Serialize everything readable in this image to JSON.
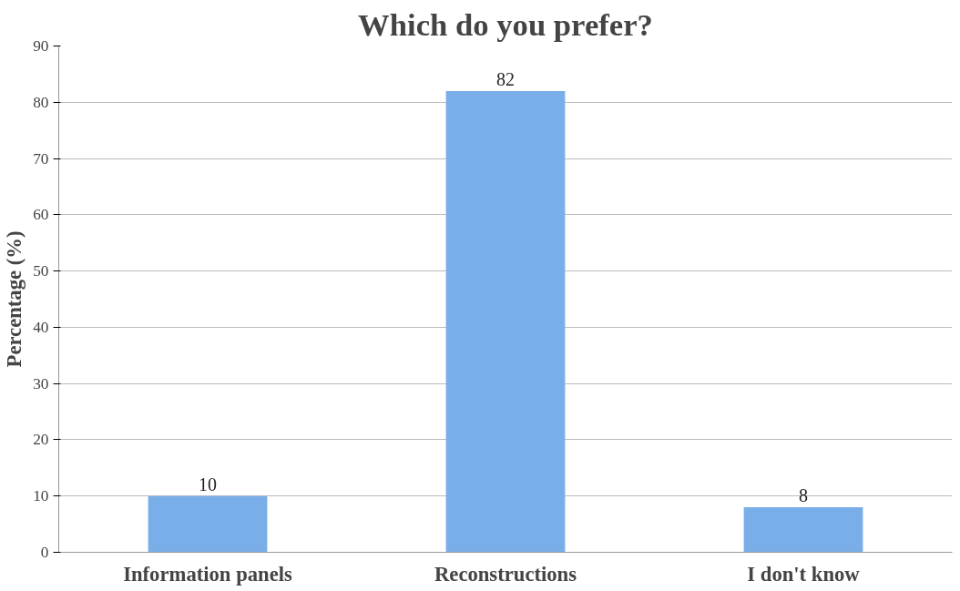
{
  "chart_data": {
    "type": "bar",
    "title": "Which do you prefer?",
    "ylabel": "Percentage (%)",
    "categories": [
      "Information panels",
      "Reconstructions",
      "I don't know"
    ],
    "values": [
      10,
      82,
      8
    ],
    "color": "#7aaee8",
    "ylim": [
      0,
      90
    ],
    "yticks": [
      0,
      10,
      20,
      30,
      40,
      50,
      60,
      70,
      80,
      90
    ],
    "grid": "y",
    "data_labels": true
  }
}
